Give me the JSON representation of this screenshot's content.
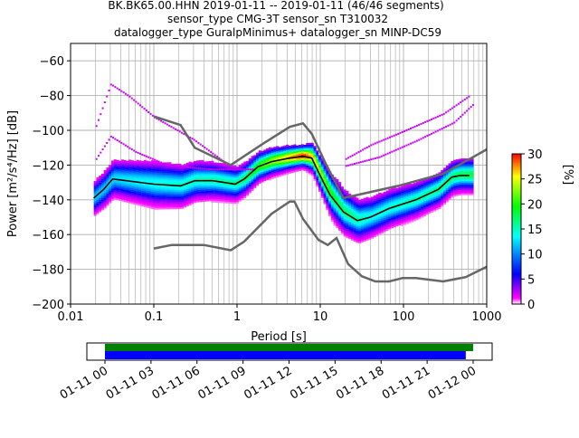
{
  "chart_data": {
    "type": "heatmap",
    "title_lines": [
      "BK.BK65.00.HHN   2019-01-11 -- 2019-01-11  (46/46 segments)",
      "sensor_type CMG-3T sensor_sn T310032",
      "datalogger_type GuralpMinimus+ datalogger_sn MINP-DC59"
    ],
    "xlabel": "Period [s]",
    "ylabel": "Power [m²/s⁴/Hz] [dB]",
    "xscale": "log",
    "xlim": [
      0.01,
      1000
    ],
    "ylim": [
      -200,
      -50
    ],
    "xticks": [
      0.01,
      0.1,
      1,
      10,
      100,
      1000
    ],
    "xtick_labels": [
      "0.01",
      "0.1",
      "1",
      "10",
      "100",
      "1000"
    ],
    "yticks": [
      -60,
      -80,
      -100,
      -120,
      -140,
      -160,
      -180,
      -200
    ],
    "ytick_labels": [
      "−60",
      "−80",
      "−100",
      "−120",
      "−140",
      "−160",
      "−180",
      "−200"
    ],
    "grid": true,
    "mean_curve": [
      [
        0.019,
        -139
      ],
      [
        0.025,
        -134
      ],
      [
        0.032,
        -128
      ],
      [
        0.047,
        -129
      ],
      [
        0.1,
        -131
      ],
      [
        0.21,
        -132
      ],
      [
        0.31,
        -129
      ],
      [
        0.51,
        -129
      ],
      [
        0.95,
        -131
      ],
      [
        1.22,
        -128
      ],
      [
        1.78,
        -121
      ],
      [
        2.6,
        -118
      ],
      [
        4.3,
        -116
      ],
      [
        6.2,
        -115
      ],
      [
        7.9,
        -116
      ],
      [
        10.2,
        -127
      ],
      [
        13,
        -137
      ],
      [
        19,
        -147
      ],
      [
        28,
        -152
      ],
      [
        40,
        -150
      ],
      [
        67,
        -145
      ],
      [
        141,
        -140
      ],
      [
        262,
        -134
      ],
      [
        380,
        -127
      ],
      [
        480,
        -126
      ],
      [
        620,
        -126
      ]
    ],
    "nhnm": [
      [
        0.1,
        -92
      ],
      [
        0.21,
        -97
      ],
      [
        0.31,
        -110
      ],
      [
        0.84,
        -120
      ],
      [
        2,
        -108
      ],
      [
        4.3,
        -98
      ],
      [
        6.2,
        -96
      ],
      [
        7.9,
        -102
      ],
      [
        11.6,
        -119
      ],
      [
        19,
        -139
      ],
      [
        86,
        -132
      ],
      [
        300,
        -125
      ],
      [
        1000,
        -111
      ]
    ],
    "nlnm": [
      [
        0.1,
        -168
      ],
      [
        0.165,
        -166
      ],
      [
        0.4,
        -166
      ],
      [
        0.84,
        -169
      ],
      [
        1.22,
        -164
      ],
      [
        2.6,
        -148
      ],
      [
        4.3,
        -141
      ],
      [
        4.9,
        -141
      ],
      [
        6.2,
        -151
      ],
      [
        9.5,
        -163
      ],
      [
        12.3,
        -166
      ],
      [
        15.7,
        -162
      ],
      [
        21.6,
        -177
      ],
      [
        31.6,
        -184
      ],
      [
        46,
        -187
      ],
      [
        67,
        -187
      ],
      [
        98,
        -185
      ],
      [
        141,
        -185
      ],
      [
        300,
        -187
      ],
      [
        560,
        -184.5
      ],
      [
        1000,
        -178.5
      ]
    ],
    "outlier_traces": [
      [
        [
          0.02,
          -97
        ],
        [
          0.03,
          -73
        ],
        [
          0.05,
          -80
        ],
        [
          0.1,
          -92
        ],
        [
          0.3,
          -105
        ],
        [
          0.8,
          -120
        ]
      ],
      [
        [
          0.02,
          -116
        ],
        [
          0.03,
          -103
        ],
        [
          0.06,
          -112
        ],
        [
          0.15,
          -120
        ],
        [
          0.5,
          -122
        ],
        [
          1.5,
          -122
        ]
      ],
      [
        [
          20,
          -116
        ],
        [
          40,
          -108
        ],
        [
          100,
          -100
        ],
        [
          300,
          -90
        ],
        [
          600,
          -80
        ]
      ],
      [
        [
          20,
          -120
        ],
        [
          50,
          -115
        ],
        [
          150,
          -105
        ],
        [
          400,
          -95
        ],
        [
          700,
          -84
        ]
      ]
    ],
    "pdf_band_spread_db": [
      [
        0.019,
        6
      ],
      [
        0.1,
        8
      ],
      [
        1,
        6
      ],
      [
        6,
        4
      ],
      [
        15,
        8
      ],
      [
        40,
        7
      ],
      [
        200,
        6
      ],
      [
        700,
        6
      ]
    ],
    "pdf_peak_percent": [
      [
        0.019,
        12
      ],
      [
        0.1,
        14
      ],
      [
        1,
        16
      ],
      [
        6,
        30
      ],
      [
        15,
        18
      ],
      [
        40,
        14
      ],
      [
        200,
        16
      ],
      [
        700,
        18
      ]
    ],
    "colorbar": {
      "label": "[%]",
      "range": [
        0,
        30
      ],
      "ticks": [
        "0",
        "5",
        "10",
        "15",
        "20",
        "25",
        "30"
      ],
      "colors": [
        "#ffffff",
        "#ff00ff",
        "#0000ff",
        "#00ffff",
        "#00ff00",
        "#ffff00",
        "#ff0000"
      ]
    },
    "timeline": {
      "tick_labels": [
        "01-11 00",
        "01-11 03",
        "01-11 06",
        "01-11 09",
        "01-11 12",
        "01-11 15",
        "01-11 18",
        "01-11 21",
        "01-12 00"
      ],
      "data_available_fraction": 1.0,
      "processed_fraction": 0.98,
      "data_color": "#008000",
      "processed_color": "#0000ff"
    },
    "colors": {
      "nm_lines": "#666666",
      "mean": "#000000",
      "outliers": "#cc00ff"
    }
  }
}
